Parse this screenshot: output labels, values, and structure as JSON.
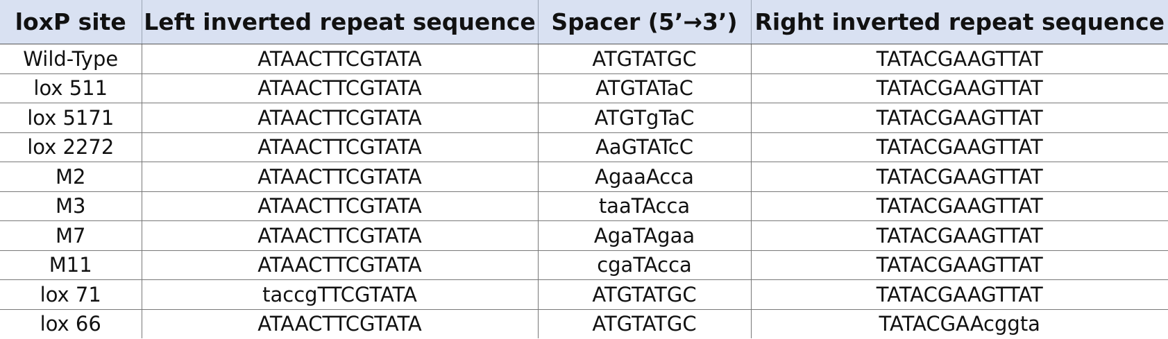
{
  "table": {
    "header": [
      "loxP site",
      "Left inverted repeat sequence",
      "Spacer (5’→3’)",
      "Right inverted repeat sequence"
    ],
    "rows": [
      [
        "Wild-Type",
        "ATAACTTCGTATA",
        "ATGTATGC",
        "TATACGAAGTTAT"
      ],
      [
        "lox 511",
        "ATAACTTCGTATA",
        "ATGTATaC",
        "TATACGAAGTTAT"
      ],
      [
        "lox 5171",
        "ATAACTTCGTATA",
        "ATGTgTaC",
        "TATACGAAGTTAT"
      ],
      [
        "lox 2272",
        "ATAACTTCGTATA",
        "AaGTATcC",
        "TATACGAAGTTAT"
      ],
      [
        "M2",
        "ATAACTTCGTATA",
        "AgaaAcca",
        "TATACGAAGTTAT"
      ],
      [
        "M3",
        "ATAACTTCGTATA",
        "taaTAcca",
        "TATACGAAGTTAT"
      ],
      [
        "M7",
        "ATAACTTCGTATA",
        "AgaTAgaa",
        "TATACGAAGTTAT"
      ],
      [
        "M11",
        "ATAACTTCGTATA",
        "cgaTAcca",
        "TATACGAAGTTAT"
      ],
      [
        "lox 71",
        "taccgTTCGTATA",
        "ATGTATGC",
        "TATACGAAGTTAT"
      ],
      [
        "lox 66",
        "ATAACTTCGTATA",
        "ATGTATGC",
        "TATACGAAcggta"
      ]
    ]
  }
}
